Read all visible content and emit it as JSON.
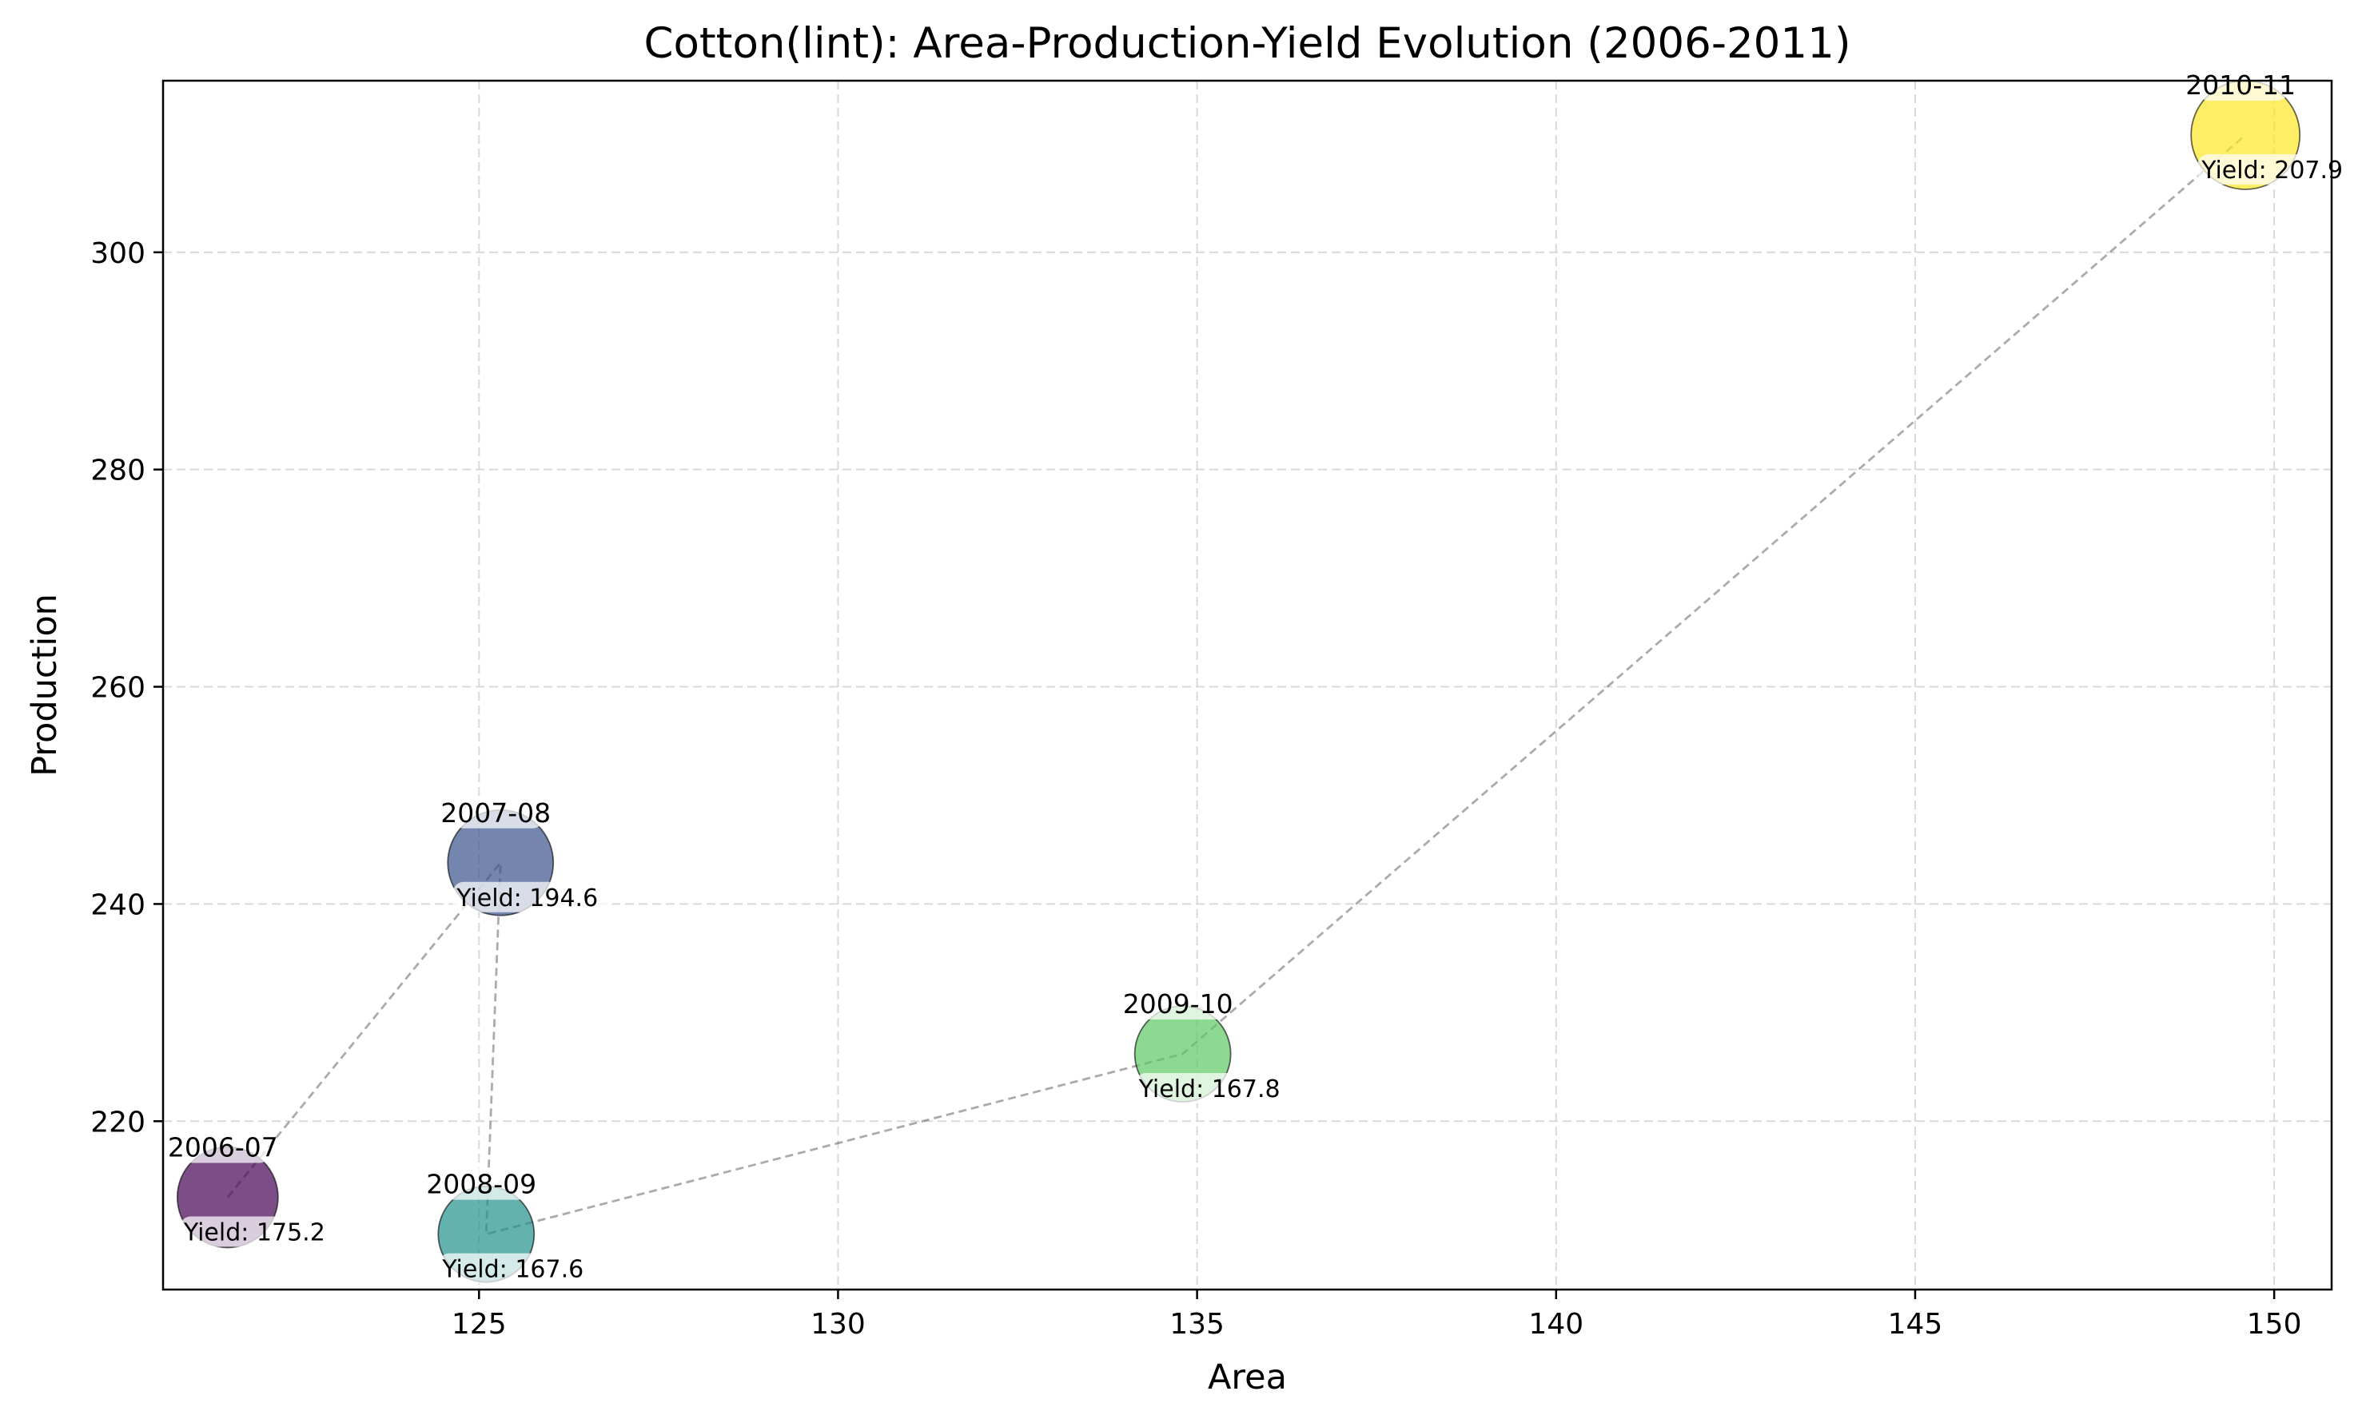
{
  "chart_data": {
    "type": "scatter",
    "title": "Cotton(lint): Area-Production-Yield Evolution (2006-2011)",
    "xlabel": "Area",
    "ylabel": "Production",
    "xlim": [
      120.6,
      150.8
    ],
    "ylim": [
      204.5,
      315.8
    ],
    "xticks": [
      "125",
      "130",
      "135",
      "140",
      "145",
      "150"
    ],
    "yticks": [
      "220",
      "240",
      "260",
      "280",
      "300"
    ],
    "grid": true,
    "connect_points": true,
    "points": [
      {
        "label": "2006-07",
        "x": 121.5,
        "y": 213.0,
        "yield_label": "Yield: 175.2",
        "color": "#440154"
      },
      {
        "label": "2007-08",
        "x": 125.3,
        "y": 243.8,
        "yield_label": "Yield: 194.6",
        "color": "#3b528b"
      },
      {
        "label": "2008-09",
        "x": 125.1,
        "y": 209.6,
        "yield_label": "Yield: 167.6",
        "color": "#21918c"
      },
      {
        "label": "2009-10",
        "x": 134.8,
        "y": 226.2,
        "yield_label": "Yield: 167.8",
        "color": "#5ec962"
      },
      {
        "label": "2010-11",
        "x": 149.6,
        "y": 310.8,
        "yield_label": "Yield: 207.9",
        "color": "#fde725"
      }
    ]
  }
}
